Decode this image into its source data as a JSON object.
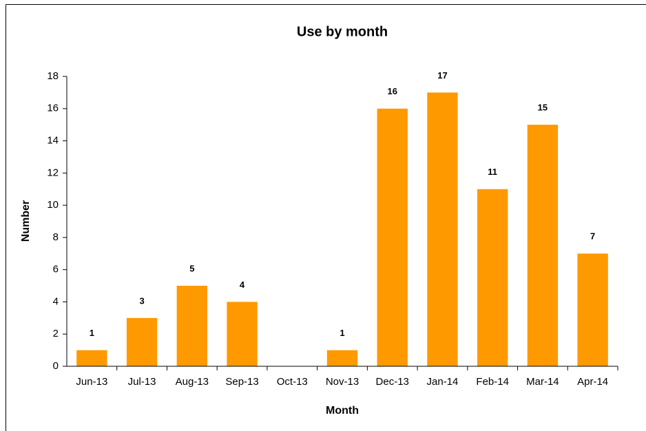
{
  "chart_data": {
    "type": "bar",
    "title": "Use by month",
    "xlabel": "Month",
    "ylabel": "Number",
    "categories": [
      "Jun-13",
      "Jul-13",
      "Aug-13",
      "Sep-13",
      "Oct-13",
      "Nov-13",
      "Dec-13",
      "Jan-14",
      "Feb-14",
      "Mar-14",
      "Apr-14"
    ],
    "values": [
      1,
      3,
      5,
      4,
      null,
      1,
      16,
      17,
      11,
      15,
      7
    ],
    "color": "#ff9900",
    "ylim": [
      0,
      18
    ],
    "yticks": [
      0,
      2,
      4,
      6,
      8,
      10,
      12,
      14,
      16,
      18
    ],
    "grid": false
  }
}
